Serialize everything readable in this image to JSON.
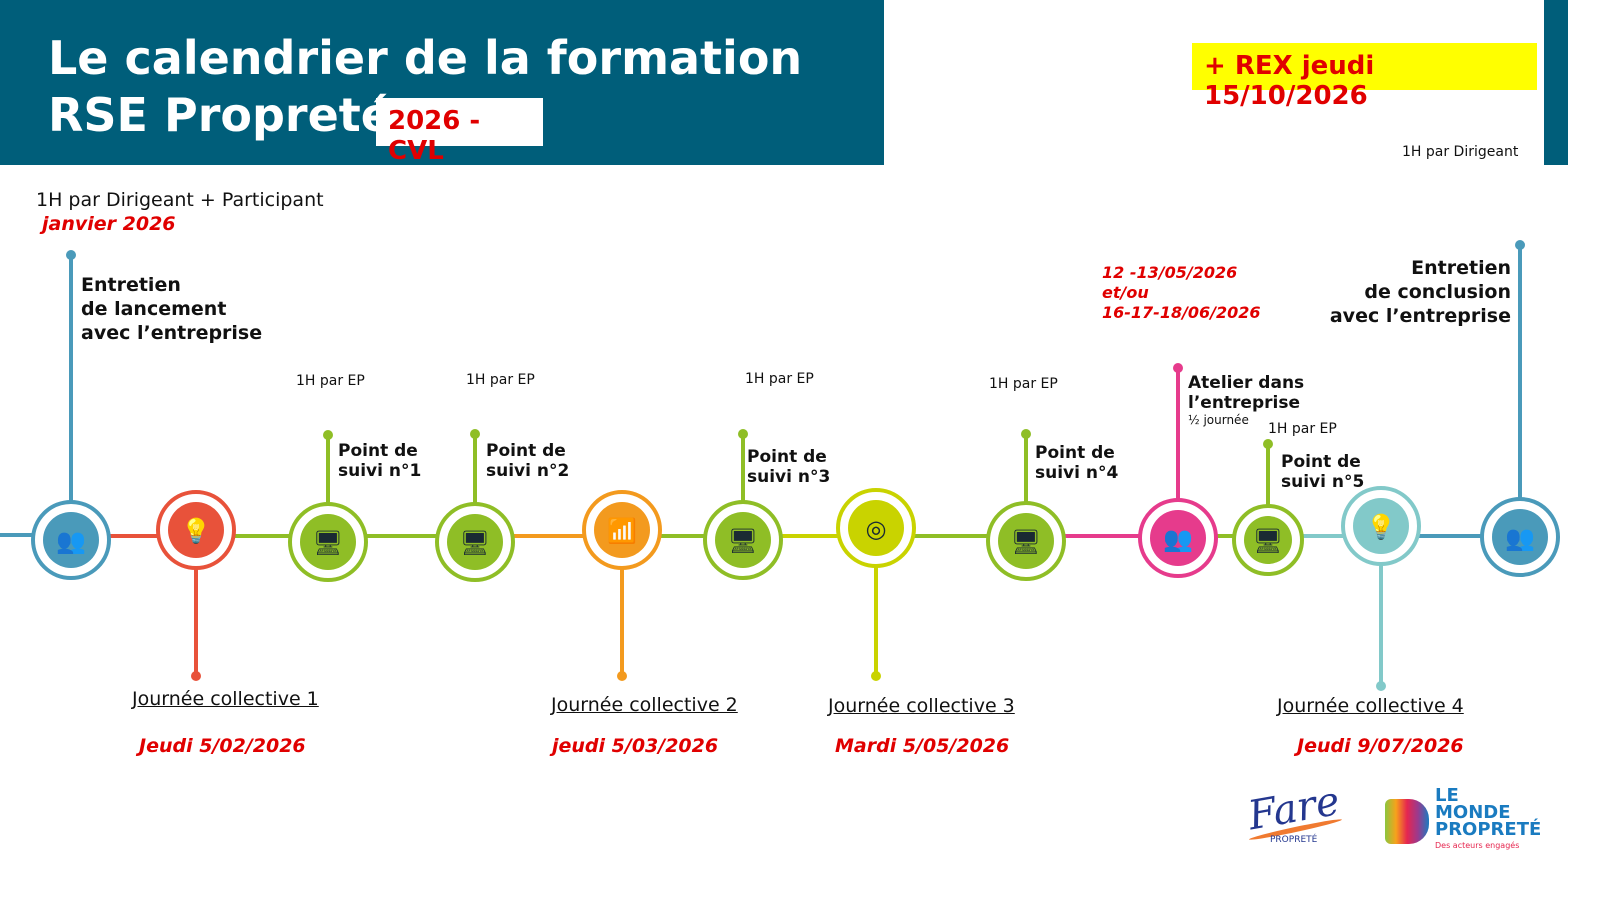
{
  "header": {
    "title": "Le calendrier de la formation\nRSE Propreté",
    "badge": "2026 -CVL",
    "rex": "+ REX jeudi 15/10/2026",
    "rex_note": "1H  par Dirigeant"
  },
  "launch": {
    "duration": "1H  par Dirigeant + Participant",
    "date": "janvier 2026",
    "label_1": "Entretien",
    "label_2": "de lancement",
    "label_3": "avec l’entreprise"
  },
  "followups": [
    {
      "duration": "1H  par EP",
      "label_1": "Point de",
      "label_2": "suivi n°1"
    },
    {
      "duration": "1H  par EP",
      "label_1": "Point de",
      "label_2": "suivi n°2"
    },
    {
      "duration": "1H  par EP",
      "label_1": "Point de",
      "label_2": "suivi n°3"
    },
    {
      "duration": "1H  par EP",
      "label_1": "Point de",
      "label_2": "suivi n°4"
    },
    {
      "duration": "1H  par EP",
      "label_1": "Point de",
      "label_2": "suivi n°5"
    }
  ],
  "collectives": [
    {
      "label": "Journée collective 1",
      "date": "Jeudi 5/02/2026"
    },
    {
      "label": "Journée collective 2",
      "date": "jeudi 5/03/2026"
    },
    {
      "label": "Journée collective 3",
      "date": "Mardi 5/05/2026"
    },
    {
      "label": "Journée collective 4",
      "date": "Jeudi 9/07/2026"
    }
  ],
  "workshop": {
    "dates_1": "12 -13/05/2026",
    "dates_2": "et/ou",
    "dates_3": "16-17-18/06/2026",
    "label_1": "Atelier dans",
    "label_2": "l’entreprise",
    "duration": "½ journée"
  },
  "conclusion": {
    "label_1": "Entretien",
    "label_2": "de conclusion",
    "label_3": "avec l’entreprise"
  },
  "logos": {
    "fare": "Fare PROPRETÉ",
    "monde": "LE MONDE DE LA PROPRETÉ",
    "monde_tagline": "Des acteurs engagés"
  },
  "nodes": [
    {
      "name": "team-icon",
      "color": "#4a9aba",
      "glyph": "👥"
    },
    {
      "name": "lightbulb-icon",
      "color": "#e8523a",
      "glyph": "💡"
    },
    {
      "name": "monitor-chat-icon",
      "color": "#8fbe26",
      "glyph": "🖥"
    },
    {
      "name": "monitor-chat-icon",
      "color": "#8fbe26",
      "glyph": "🖥"
    },
    {
      "name": "bar-chart-icon",
      "color": "#f39a1e",
      "glyph": "📶"
    },
    {
      "name": "monitor-chat-icon",
      "color": "#8fbe26",
      "glyph": "🖥"
    },
    {
      "name": "target-icon",
      "color": "#c9d300",
      "glyph": "◎"
    },
    {
      "name": "monitor-chat-icon",
      "color": "#8fbe26",
      "glyph": "🖥"
    },
    {
      "name": "audience-icon",
      "color": "#e63b8c",
      "glyph": "👥"
    },
    {
      "name": "monitor-chat-icon",
      "color": "#8fbe26",
      "glyph": "🖥"
    },
    {
      "name": "lightbulb-check-icon",
      "color": "#82c9c9",
      "glyph": "💡"
    },
    {
      "name": "meeting-icon",
      "color": "#4a9aba",
      "glyph": "👥"
    }
  ]
}
